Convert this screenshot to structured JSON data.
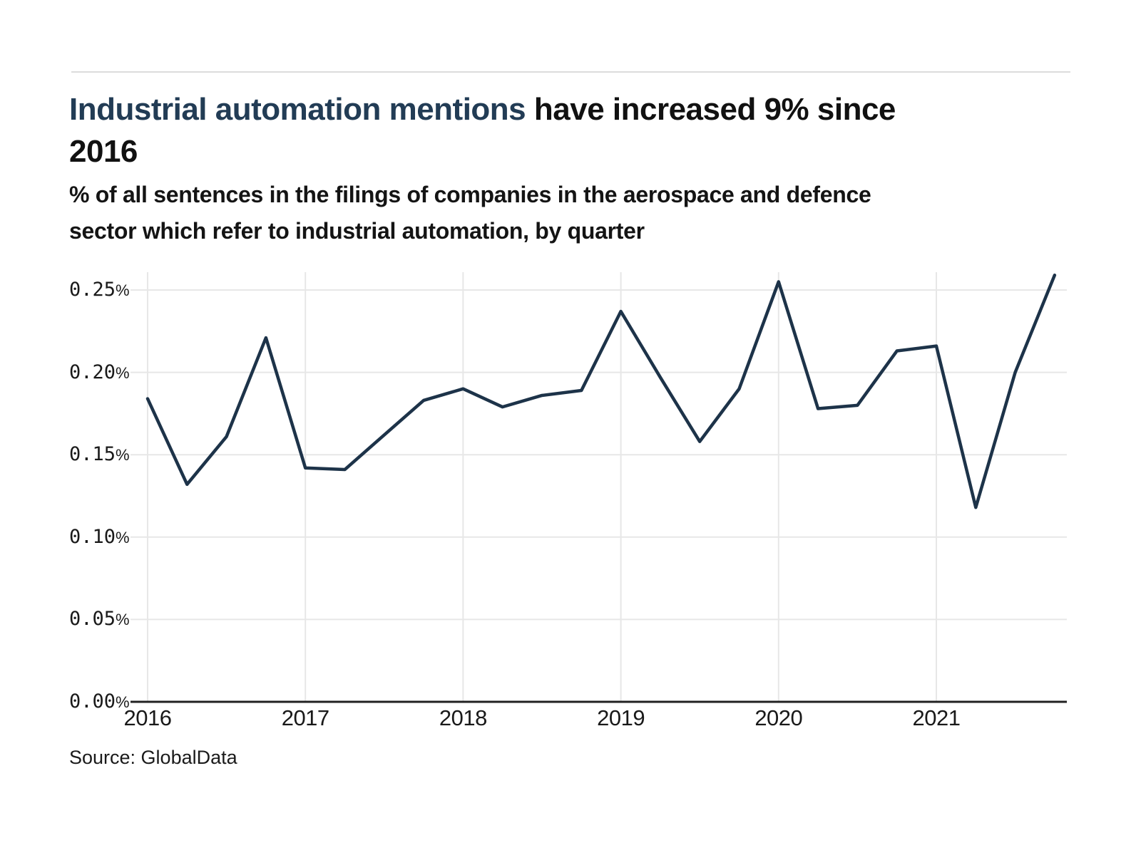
{
  "title": {
    "highlight": "Industrial automation mentions",
    "rest_line1": " have increased 9% since",
    "line2": "2016"
  },
  "subtitle_lines": [
    "% of all sentences in the filings of companies in the aerospace and defence",
    "sector which refer to industrial automation, by quarter"
  ],
  "source": "Source: GlobalData",
  "colors": {
    "title_highlight": "#223c55",
    "line": "#1d3349",
    "grid": "#e7e7e7",
    "axis": "#212121",
    "divider": "#dcdcdc",
    "text": "#141414"
  },
  "chart_data": {
    "type": "line",
    "title": "Industrial automation mentions have increased 9% since 2016",
    "subtitle": "% of all sentences in the filings of companies in the aerospace and defence sector which refer to industrial automation, by quarter",
    "unit": "%",
    "grid": true,
    "legend": false,
    "ylim": [
      0,
      0.25
    ],
    "y_tick_labels": [
      "0.00%",
      "0.05%",
      "0.10%",
      "0.15%",
      "0.20%",
      "0.25%"
    ],
    "x_tick_labels": [
      "2016",
      "2017",
      "2018",
      "2019",
      "2020",
      "2021"
    ],
    "categories": [
      "2016 Q1",
      "2016 Q2",
      "2016 Q3",
      "2016 Q4",
      "2017 Q1",
      "2017 Q2",
      "2017 Q3",
      "2017 Q4",
      "2018 Q1",
      "2018 Q2",
      "2018 Q3",
      "2018 Q4",
      "2019 Q1",
      "2019 Q2",
      "2019 Q3",
      "2019 Q4",
      "2020 Q1",
      "2020 Q2",
      "2020 Q3",
      "2020 Q4",
      "2021 Q1",
      "2021 Q2",
      "2021 Q3",
      "2021 Q4"
    ],
    "series": [
      {
        "name": "Industrial automation mentions (% of all sentences)",
        "values": [
          0.184,
          0.132,
          0.161,
          0.221,
          0.142,
          0.141,
          0.162,
          0.183,
          0.19,
          0.179,
          0.186,
          0.189,
          0.237,
          0.197,
          0.158,
          0.19,
          0.255,
          0.178,
          0.18,
          0.213,
          0.216,
          0.118,
          0.2,
          0.259
        ]
      }
    ]
  }
}
